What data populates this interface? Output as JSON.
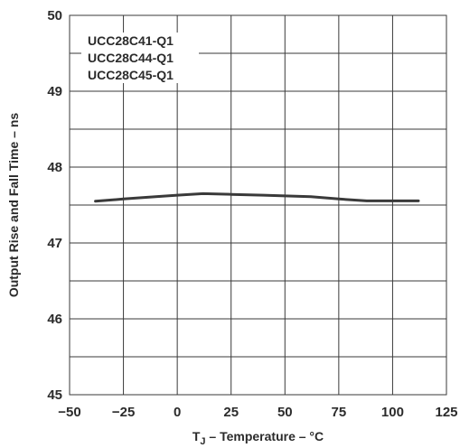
{
  "chart_data": {
    "type": "line",
    "title": "",
    "xlabel": "T_J – Temperature – °C",
    "xlabel_main": "T",
    "xlabel_sub": "J",
    "xlabel_rest": " – Temperature – °C",
    "ylabel": "Output Rise and Fall Time – ns",
    "xlim": [
      -50,
      125
    ],
    "ylim": [
      45,
      50
    ],
    "x_ticks": [
      -50,
      -25,
      0,
      25,
      50,
      75,
      100,
      125
    ],
    "x_tick_labels": [
      "−50",
      "−25",
      "0",
      "25",
      "50",
      "75",
      "100",
      "125"
    ],
    "y_ticks": [
      45,
      46,
      47,
      48,
      49,
      50
    ],
    "y_tick_labels": [
      "45",
      "46",
      "47",
      "48",
      "49",
      "50"
    ],
    "grid": true,
    "legend_position": "top-left",
    "legend_entries": [
      "UCC28C41-Q1",
      "UCC28C44-Q1",
      "UCC28C45-Q1"
    ],
    "series": [
      {
        "x": [
          -38,
          -25,
          -10,
          0,
          12,
          25,
          40,
          50,
          62,
          75,
          88,
          100,
          112
        ],
        "y": [
          47.55,
          47.58,
          47.61,
          47.63,
          47.65,
          47.64,
          47.63,
          47.62,
          47.61,
          47.58,
          47.555,
          47.555,
          47.555
        ]
      }
    ],
    "line_color": "#3a3a3a"
  }
}
